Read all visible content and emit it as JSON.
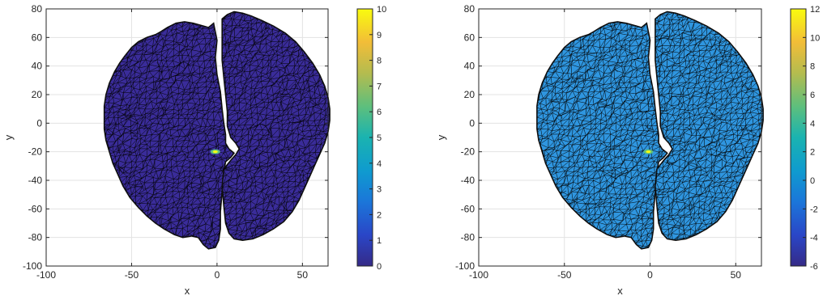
{
  "chart_data": [
    {
      "type": "surface",
      "xlabel": "x",
      "ylabel": "y",
      "xlim": [
        -100,
        65
      ],
      "ylim": [
        -100,
        80
      ],
      "xticks": [
        "-100",
        "-50",
        "0",
        "50"
      ],
      "yticks": [
        "80",
        "60",
        "40",
        "20",
        "0",
        "-20",
        "-40",
        "-60",
        "-80",
        "-100"
      ],
      "grid": true,
      "colorbar": {
        "min": 0,
        "max": 10,
        "ticks": [
          "10",
          "9",
          "8",
          "7",
          "6",
          "5",
          "4",
          "3",
          "2",
          "1",
          "0"
        ],
        "colormap": "parula"
      },
      "surface_fill": "#3a2c9a",
      "hotspot": {
        "x": -1,
        "y": -20
      }
    },
    {
      "type": "surface",
      "xlabel": "x",
      "ylabel": "y",
      "xlim": [
        -100,
        65
      ],
      "ylim": [
        -100,
        80
      ],
      "xticks": [
        "-100",
        "-50",
        "0",
        "50"
      ],
      "yticks": [
        "80",
        "60",
        "40",
        "20",
        "0",
        "-20",
        "-40",
        "-60",
        "-80",
        "-100"
      ],
      "grid": true,
      "colorbar": {
        "min": -6,
        "max": 12,
        "ticks": [
          "12",
          "10",
          "8",
          "6",
          "4",
          "2",
          "0",
          "-2",
          "-4",
          "-6"
        ],
        "colormap": "parula"
      },
      "surface_fill": "#2f96e0",
      "hotspot": {
        "x": -1,
        "y": -20
      }
    }
  ]
}
